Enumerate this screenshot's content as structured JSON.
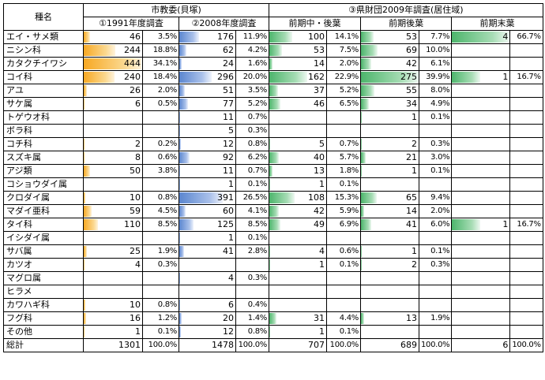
{
  "headers": {
    "name": "種名",
    "group1": "市教委(貝塚)",
    "group2": "③県財団2009年調査(居住域)",
    "sub1": "①1991年度調査",
    "sub2": "②2008年度調査",
    "sub3": "前期中・後葉",
    "sub4": "前期後葉",
    "sub5": "前期末葉"
  },
  "colors": {
    "orange": "#f7a823",
    "blue": "#5b86cf",
    "green": "#4db56c"
  },
  "rows": [
    {
      "name": "エイ・サメ類",
      "c": [
        [
          46,
          "3.5%"
        ],
        [
          176,
          "11.9%"
        ],
        [
          100,
          "14.1%"
        ],
        [
          53,
          "7.7%"
        ],
        [
          4,
          "66.7%"
        ]
      ]
    },
    {
      "name": "ニシン科",
      "c": [
        [
          244,
          "18.8%"
        ],
        [
          62,
          "4.2%"
        ],
        [
          53,
          "7.5%"
        ],
        [
          69,
          "10.0%"
        ],
        null
      ]
    },
    {
      "name": "カタクチイワシ",
      "c": [
        [
          444,
          "34.1%"
        ],
        [
          24,
          "1.6%"
        ],
        [
          14,
          "2.0%"
        ],
        [
          42,
          "6.1%"
        ],
        null
      ]
    },
    {
      "name": "コイ科",
      "c": [
        [
          240,
          "18.4%"
        ],
        [
          296,
          "20.0%"
        ],
        [
          162,
          "22.9%"
        ],
        [
          275,
          "39.9%"
        ],
        [
          1,
          "16.7%"
        ]
      ]
    },
    {
      "name": "アユ",
      "c": [
        [
          26,
          "2.0%"
        ],
        [
          51,
          "3.5%"
        ],
        [
          37,
          "5.2%"
        ],
        [
          55,
          "8.0%"
        ],
        null
      ]
    },
    {
      "name": "サケ属",
      "c": [
        [
          6,
          "0.5%"
        ],
        [
          77,
          "5.2%"
        ],
        [
          46,
          "6.5%"
        ],
        [
          34,
          "4.9%"
        ],
        null
      ]
    },
    {
      "name": "トゲウオ科",
      "c": [
        null,
        [
          11,
          "0.7%"
        ],
        null,
        [
          1,
          "0.1%"
        ],
        null
      ]
    },
    {
      "name": "ボラ科",
      "c": [
        null,
        [
          5,
          "0.3%"
        ],
        null,
        null,
        null
      ]
    },
    {
      "name": "コチ科",
      "c": [
        [
          2,
          "0.2%"
        ],
        [
          12,
          "0.8%"
        ],
        [
          5,
          "0.7%"
        ],
        [
          2,
          "0.3%"
        ],
        null
      ]
    },
    {
      "name": "スズキ属",
      "c": [
        [
          8,
          "0.6%"
        ],
        [
          92,
          "6.2%"
        ],
        [
          40,
          "5.7%"
        ],
        [
          21,
          "3.0%"
        ],
        null
      ]
    },
    {
      "name": "アジ類",
      "c": [
        [
          50,
          "3.8%"
        ],
        [
          11,
          "0.7%"
        ],
        [
          13,
          "1.8%"
        ],
        [
          1,
          "0.1%"
        ],
        null
      ]
    },
    {
      "name": "コショウダイ属",
      "c": [
        null,
        [
          1,
          "0.1%"
        ],
        [
          1,
          "0.1%"
        ],
        null,
        null
      ]
    },
    {
      "name": "クロダイ属",
      "c": [
        [
          10,
          "0.8%"
        ],
        [
          391,
          "26.5%"
        ],
        [
          108,
          "15.3%"
        ],
        [
          65,
          "9.4%"
        ],
        null
      ]
    },
    {
      "name": "マダイ亜科",
      "c": [
        [
          59,
          "4.5%"
        ],
        [
          60,
          "4.1%"
        ],
        [
          42,
          "5.9%"
        ],
        [
          14,
          "2.0%"
        ],
        null
      ]
    },
    {
      "name": "タイ科",
      "c": [
        [
          110,
          "8.5%"
        ],
        [
          125,
          "8.5%"
        ],
        [
          49,
          "6.9%"
        ],
        [
          41,
          "6.0%"
        ],
        [
          1,
          "16.7%"
        ]
      ]
    },
    {
      "name": "イシダイ属",
      "c": [
        null,
        [
          1,
          "0.1%"
        ],
        null,
        null,
        null
      ]
    },
    {
      "name": "サバ属",
      "c": [
        [
          25,
          "1.9%"
        ],
        [
          41,
          "2.8%"
        ],
        [
          4,
          "0.6%"
        ],
        [
          1,
          "0.1%"
        ],
        null
      ]
    },
    {
      "name": "カツオ",
      "c": [
        [
          4,
          "0.3%"
        ],
        null,
        [
          1,
          "0.1%"
        ],
        [
          2,
          "0.3%"
        ],
        null
      ]
    },
    {
      "name": "マグロ属",
      "c": [
        null,
        [
          4,
          "0.3%"
        ],
        null,
        null,
        null
      ]
    },
    {
      "name": "ヒラメ",
      "c": [
        null,
        null,
        null,
        null,
        null
      ]
    },
    {
      "name": "カワハギ科",
      "c": [
        [
          10,
          "0.8%"
        ],
        [
          6,
          "0.4%"
        ],
        null,
        null,
        null
      ]
    },
    {
      "name": "フグ科",
      "c": [
        [
          16,
          "1.2%"
        ],
        [
          20,
          "1.4%"
        ],
        [
          31,
          "4.4%"
        ],
        [
          13,
          "1.9%"
        ],
        null
      ]
    },
    {
      "name": "その他",
      "c": [
        [
          1,
          "0.1%"
        ],
        [
          12,
          "0.8%"
        ],
        [
          1,
          "0.1%"
        ],
        null,
        null
      ]
    }
  ],
  "total": {
    "name": "総計",
    "c": [
      [
        1301,
        "100.0%"
      ],
      [
        1478,
        "100.0%"
      ],
      [
        707,
        "100.0%"
      ],
      [
        689,
        "100.0%"
      ],
      [
        6,
        "100.0%"
      ]
    ]
  }
}
